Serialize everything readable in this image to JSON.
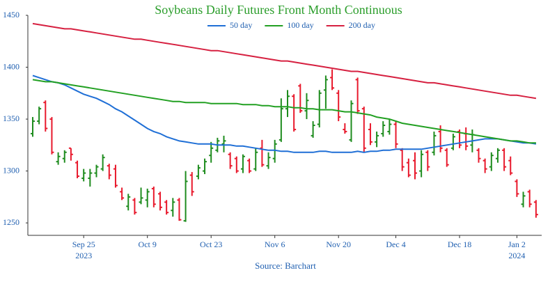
{
  "chart_data": {
    "type": "ohlc",
    "title": "Soybeans Daily Futures Front Month Continuous",
    "source": "Source: Barchart",
    "x": [
      "2023-09-13",
      "2023-09-14",
      "2023-09-15",
      "2023-09-18",
      "2023-09-19",
      "2023-09-20",
      "2023-09-21",
      "2023-09-22",
      "2023-09-25",
      "2023-09-26",
      "2023-09-27",
      "2023-09-28",
      "2023-09-29",
      "2023-10-02",
      "2023-10-03",
      "2023-10-04",
      "2023-10-05",
      "2023-10-06",
      "2023-10-09",
      "2023-10-10",
      "2023-10-11",
      "2023-10-12",
      "2023-10-13",
      "2023-10-16",
      "2023-10-17",
      "2023-10-18",
      "2023-10-19",
      "2023-10-20",
      "2023-10-23",
      "2023-10-24",
      "2023-10-25",
      "2023-10-26",
      "2023-10-27",
      "2023-10-30",
      "2023-10-31",
      "2023-11-01",
      "2023-11-02",
      "2023-11-03",
      "2023-11-06",
      "2023-11-07",
      "2023-11-08",
      "2023-11-09",
      "2023-11-10",
      "2023-11-13",
      "2023-11-14",
      "2023-11-15",
      "2023-11-16",
      "2023-11-17",
      "2023-11-20",
      "2023-11-21",
      "2023-11-22",
      "2023-11-24",
      "2023-11-27",
      "2023-11-28",
      "2023-11-29",
      "2023-11-30",
      "2023-12-01",
      "2023-12-04",
      "2023-12-05",
      "2023-12-06",
      "2023-12-07",
      "2023-12-08",
      "2023-12-11",
      "2023-12-12",
      "2023-12-13",
      "2023-12-14",
      "2023-12-15",
      "2023-12-18",
      "2023-12-19",
      "2023-12-20",
      "2023-12-21",
      "2023-12-22",
      "2023-12-26",
      "2023-12-27",
      "2023-12-28",
      "2023-12-29",
      "2024-01-02",
      "2024-01-03",
      "2024-01-04",
      "2024-01-05"
    ],
    "open": [
      1336,
      1348,
      1366,
      1350,
      1309,
      1312,
      1322,
      1308,
      1293,
      1293,
      1298,
      1302,
      1305,
      1302,
      1280,
      1266,
      1272,
      1270,
      1272,
      1283,
      1278,
      1270,
      1262,
      1272,
      1252,
      1296,
      1295,
      1300,
      1315,
      1320,
      1326,
      1316,
      1312,
      1302,
      1310,
      1302,
      1322,
      1305,
      1312,
      1330,
      1360,
      1372,
      1382,
      1358,
      1334,
      1345,
      1378,
      1390,
      1375,
      1340,
      1330,
      1388,
      1360,
      1340,
      1328,
      1336,
      1338,
      1345,
      1320,
      1308,
      1310,
      1300,
      1318,
      1318,
      1338,
      1320,
      1322,
      1338,
      1336,
      1325,
      1320,
      1310,
      1304,
      1312,
      1320,
      1310,
      1290,
      1268,
      1280,
      1270
    ],
    "high": [
      1352,
      1362,
      1368,
      1352,
      1318,
      1320,
      1322,
      1310,
      1302,
      1302,
      1306,
      1316,
      1307,
      1306,
      1284,
      1278,
      1274,
      1284,
      1283,
      1285,
      1280,
      1272,
      1274,
      1274,
      1300,
      1299,
      1306,
      1312,
      1328,
      1332,
      1334,
      1318,
      1314,
      1316,
      1312,
      1322,
      1330,
      1318,
      1330,
      1370,
      1378,
      1374,
      1384,
      1375,
      1348,
      1378,
      1392,
      1398,
      1378,
      1346,
      1368,
      1390,
      1362,
      1346,
      1338,
      1348,
      1350,
      1348,
      1322,
      1312,
      1318,
      1320,
      1320,
      1338,
      1344,
      1322,
      1336,
      1340,
      1342,
      1340,
      1322,
      1312,
      1318,
      1322,
      1322,
      1314,
      1292,
      1280,
      1282,
      1272
    ],
    "low": [
      1333,
      1345,
      1338,
      1316,
      1306,
      1308,
      1310,
      1293,
      1290,
      1285,
      1294,
      1300,
      1292,
      1284,
      1272,
      1262,
      1258,
      1268,
      1265,
      1265,
      1262,
      1258,
      1256,
      1252,
      1251,
      1276,
      1292,
      1297,
      1308,
      1318,
      1318,
      1302,
      1298,
      1298,
      1298,
      1300,
      1304,
      1302,
      1308,
      1328,
      1352,
      1338,
      1356,
      1350,
      1332,
      1342,
      1360,
      1378,
      1348,
      1336,
      1328,
      1355,
      1318,
      1325,
      1323,
      1333,
      1335,
      1322,
      1300,
      1294,
      1292,
      1294,
      1300,
      1315,
      1318,
      1304,
      1320,
      1322,
      1320,
      1318,
      1308,
      1298,
      1300,
      1308,
      1300,
      1296,
      1275,
      1265,
      1265,
      1255
    ],
    "close": [
      1348,
      1360,
      1341,
      1318,
      1314,
      1318,
      1316,
      1295,
      1298,
      1298,
      1304,
      1313,
      1296,
      1286,
      1274,
      1275,
      1260,
      1274,
      1280,
      1268,
      1265,
      1260,
      1270,
      1253,
      1290,
      1280,
      1303,
      1309,
      1322,
      1329,
      1329,
      1305,
      1300,
      1314,
      1300,
      1318,
      1306,
      1313,
      1326,
      1360,
      1372,
      1340,
      1358,
      1368,
      1344,
      1375,
      1388,
      1380,
      1352,
      1338,
      1365,
      1358,
      1322,
      1328,
      1334,
      1344,
      1345,
      1326,
      1304,
      1296,
      1298,
      1316,
      1304,
      1334,
      1322,
      1306,
      1333,
      1325,
      1324,
      1335,
      1312,
      1302,
      1315,
      1320,
      1304,
      1298,
      1278,
      1276,
      1268,
      1258
    ],
    "up_color": "#1e8c1e",
    "down_color": "#e8192c",
    "lines": [
      {
        "name": "50 day",
        "color": "#1f6fd6",
        "values": [
          1392,
          1390,
          1388,
          1386,
          1385,
          1383,
          1380,
          1377,
          1374,
          1372,
          1370,
          1367,
          1364,
          1360,
          1357,
          1353,
          1349,
          1345,
          1341,
          1338,
          1336,
          1333,
          1331,
          1329,
          1328,
          1327,
          1326,
          1326,
          1326,
          1325,
          1325,
          1325,
          1324,
          1324,
          1323,
          1322,
          1321,
          1320,
          1320,
          1319,
          1319,
          1318,
          1318,
          1318,
          1318,
          1319,
          1319,
          1318,
          1318,
          1318,
          1318,
          1319,
          1318,
          1319,
          1319,
          1320,
          1320,
          1321,
          1321,
          1321,
          1321,
          1321,
          1322,
          1323,
          1324,
          1325,
          1326,
          1327,
          1328,
          1329,
          1330,
          1331,
          1331,
          1331,
          1330,
          1329,
          1328,
          1327,
          1327,
          1326
        ]
      },
      {
        "name": "100 day",
        "color": "#22a022",
        "values": [
          1388,
          1387,
          1386,
          1386,
          1385,
          1384,
          1383,
          1382,
          1381,
          1380,
          1379,
          1378,
          1377,
          1376,
          1375,
          1374,
          1373,
          1372,
          1371,
          1370,
          1369,
          1368,
          1367,
          1367,
          1366,
          1366,
          1366,
          1366,
          1365,
          1365,
          1365,
          1365,
          1365,
          1364,
          1364,
          1364,
          1363,
          1363,
          1362,
          1362,
          1362,
          1361,
          1361,
          1360,
          1360,
          1359,
          1359,
          1359,
          1358,
          1357,
          1357,
          1356,
          1355,
          1354,
          1352,
          1351,
          1350,
          1348,
          1346,
          1345,
          1344,
          1343,
          1342,
          1341,
          1340,
          1339,
          1338,
          1337,
          1336,
          1335,
          1334,
          1333,
          1332,
          1331,
          1330,
          1329,
          1329,
          1328,
          1327,
          1327
        ]
      },
      {
        "name": "200 day",
        "color": "#d62040",
        "values": [
          1442,
          1441,
          1440,
          1439,
          1438,
          1437,
          1437,
          1436,
          1435,
          1434,
          1433,
          1432,
          1431,
          1430,
          1429,
          1428,
          1427,
          1427,
          1426,
          1425,
          1424,
          1423,
          1422,
          1421,
          1420,
          1419,
          1418,
          1417,
          1416,
          1416,
          1415,
          1414,
          1413,
          1412,
          1411,
          1410,
          1409,
          1408,
          1407,
          1406,
          1406,
          1405,
          1404,
          1403,
          1402,
          1401,
          1400,
          1399,
          1398,
          1397,
          1396,
          1396,
          1395,
          1394,
          1393,
          1392,
          1391,
          1390,
          1389,
          1388,
          1387,
          1386,
          1385,
          1385,
          1384,
          1383,
          1382,
          1381,
          1380,
          1379,
          1378,
          1377,
          1376,
          1375,
          1374,
          1373,
          1373,
          1372,
          1371,
          1370
        ]
      }
    ],
    "ylim": [
      1238,
      1450
    ],
    "yticks": [
      1250,
      1300,
      1350,
      1400,
      1450
    ],
    "xticks": [
      {
        "value": "2023-09-25",
        "label": "Sep 25"
      },
      {
        "value": "2023-10-09",
        "label": "Oct 9"
      },
      {
        "value": "2023-10-23",
        "label": "Oct 23"
      },
      {
        "value": "2023-11-06",
        "label": "Nov 6"
      },
      {
        "value": "2023-11-20",
        "label": "Nov 20"
      },
      {
        "value": "2023-12-04",
        "label": "Dec 4"
      },
      {
        "value": "2023-12-18",
        "label": "Dec 18"
      },
      {
        "value": "2024-01-02",
        "label": "Jan 2"
      }
    ],
    "xtick_years": [
      {
        "value": "2023-09-25",
        "label": "2023"
      },
      {
        "value": "2024-01-02",
        "label": "2024"
      }
    ]
  }
}
